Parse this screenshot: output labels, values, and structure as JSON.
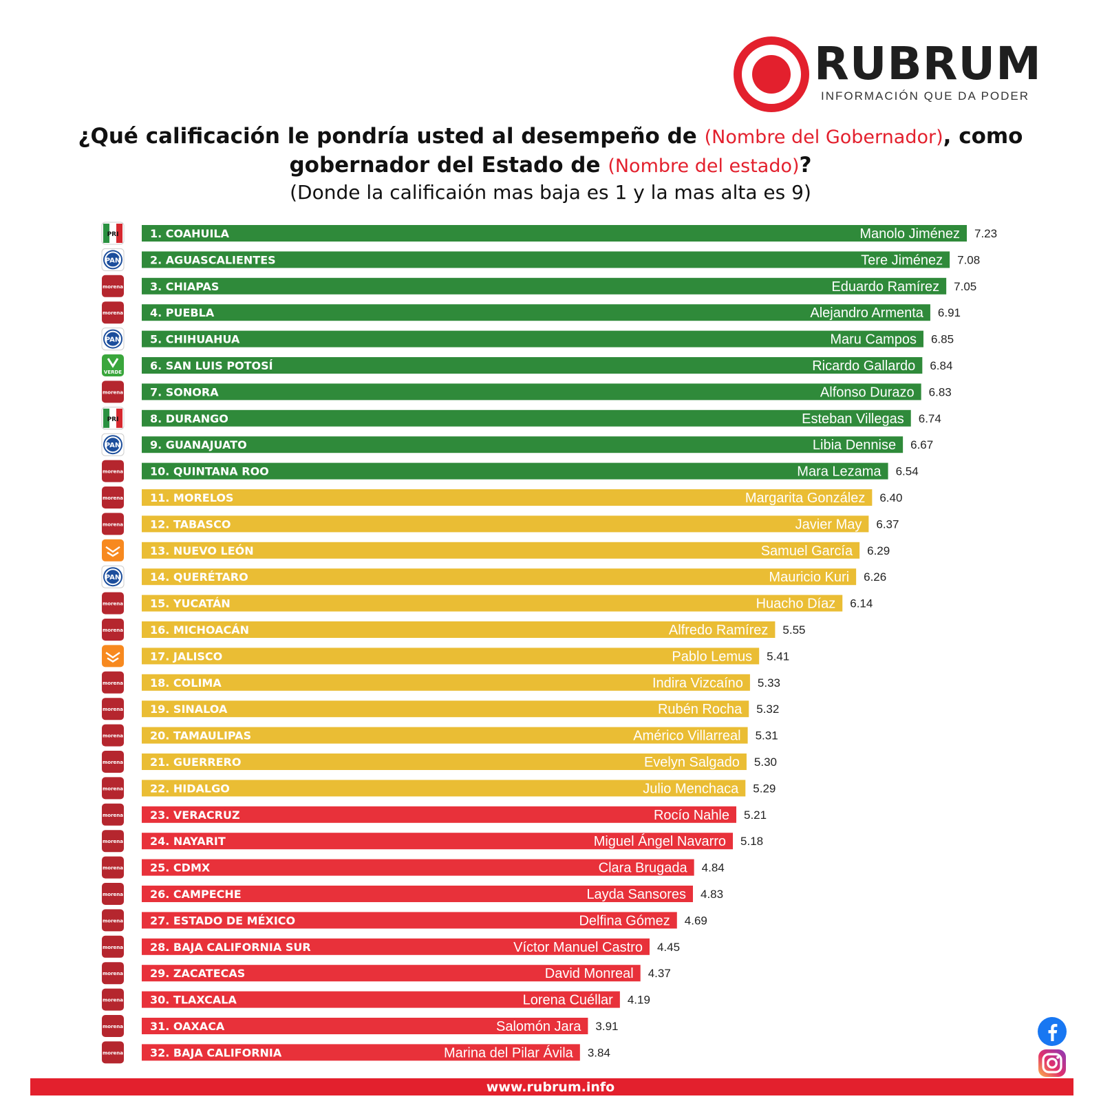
{
  "brand": {
    "name": "RUBRUM",
    "tagline": "INFORMACIÓN QUE DA PODER",
    "color": "#e3202d"
  },
  "header": {
    "title_part1": "¿Qué calificación le pondría usted al desempeño de ",
    "title_red1": "(Nombre del Gobernador)",
    "title_part2": ", como gobernador del Estado de ",
    "title_red2": "(Nombre del estado)",
    "title_part3": "?",
    "subtitle": "(Donde la calificaión mas baja es 1 y la mas alta es 9)"
  },
  "footer": {
    "url": "www.rubrum.info"
  },
  "social": [
    "facebook-icon",
    "instagram-icon"
  ],
  "colors": {
    "green": "#2f8a3a",
    "yellow": "#eabd34",
    "red": "#e8313a",
    "morena": "#b5262e",
    "pan": "#1c4e9c",
    "pri": "#2a9141",
    "mc": "#f7891f",
    "verde": "#3aa63c"
  },
  "chart_data": {
    "type": "bar",
    "orientation": "horizontal",
    "xlim": [
      0,
      7.5
    ],
    "categories": [
      "1. COAHUILA",
      "2. AGUASCALIENTES",
      "3. CHIAPAS",
      "4. PUEBLA",
      "5. CHIHUAHUA",
      "6. SAN LUIS POTOSÍ",
      "7. SONORA",
      "8. DURANGO",
      "9. GUANAJUATO",
      "10. QUINTANA ROO",
      "11. MORELOS",
      "12. TABASCO",
      "13. NUEVO LEÓN",
      "14. QUERÉTARO",
      "15. YUCATÁN",
      "16. MICHOACÁN",
      "17. JALISCO",
      "18. COLIMA",
      "19. SINALOA",
      "20. TAMAULIPAS",
      "21. GUERRERO",
      "22. HIDALGO",
      "23. VERACRUZ",
      "24. NAYARIT",
      "25. CDMX",
      "26. CAMPECHE",
      "27. ESTADO DE MÉXICO",
      "28. BAJA CALIFORNIA SUR",
      "29. ZACATECAS",
      "30. TLAXCALA",
      "31. OAXACA",
      "32. BAJA CALIFORNIA"
    ],
    "governors": [
      "Manolo Jiménez",
      "Tere Jiménez",
      "Eduardo Ramírez",
      "Alejandro Armenta",
      "Maru Campos",
      "Ricardo Gallardo",
      "Alfonso Durazo",
      "Esteban Villegas",
      "Libia Dennise",
      "Mara Lezama",
      "Margarita González",
      "Javier May",
      "Samuel García",
      "Mauricio Kuri",
      "Huacho Díaz",
      "Alfredo Ramírez",
      "Pablo Lemus",
      "Indira Vizcaíno",
      "Rubén Rocha",
      "Américo Villarreal",
      "Evelyn Salgado",
      "Julio Menchaca",
      "Rocío Nahle",
      "Miguel Ángel Navarro",
      "Clara Brugada",
      "Layda Sansores",
      "Delfina Gómez",
      "Víctor Manuel Castro",
      "David Monreal",
      "Lorena Cuéllar",
      "Salomón Jara",
      "Marina del Pilar Ávila"
    ],
    "values": [
      7.23,
      7.08,
      7.05,
      6.91,
      6.85,
      6.84,
      6.83,
      6.74,
      6.67,
      6.54,
      6.4,
      6.37,
      6.29,
      6.26,
      6.14,
      5.55,
      5.41,
      5.33,
      5.32,
      5.31,
      5.3,
      5.29,
      5.21,
      5.18,
      4.84,
      4.83,
      4.69,
      4.45,
      4.37,
      4.19,
      3.91,
      3.84
    ],
    "value_labels": [
      "7.23",
      "7.08",
      "7.05",
      "6.91",
      "6.85",
      "6.84",
      "6.83",
      "6.74",
      "6.67",
      "6.54",
      "6.40",
      "6.37",
      "6.29",
      "6.26",
      "6.14",
      "5.55",
      "5.41",
      "5.33",
      "5.32",
      "5.31",
      "5.30",
      "5.29",
      "5.21",
      "5.18",
      "4.84",
      "4.83",
      "4.69",
      "4.45",
      "4.37",
      "4.19",
      "3.91",
      "3.84"
    ],
    "bar_colors": [
      "green",
      "green",
      "green",
      "green",
      "green",
      "green",
      "green",
      "green",
      "green",
      "green",
      "yellow",
      "yellow",
      "yellow",
      "yellow",
      "yellow",
      "yellow",
      "yellow",
      "yellow",
      "yellow",
      "yellow",
      "yellow",
      "yellow",
      "red",
      "red",
      "red",
      "red",
      "red",
      "red",
      "red",
      "red",
      "red",
      "red"
    ],
    "party_labels": [
      "PRI",
      "PAN",
      "morena",
      "morena",
      "PAN",
      "VERDE",
      "morena",
      "PRI",
      "PAN",
      "morena",
      "morena",
      "morena",
      "MC",
      "PAN",
      "morena",
      "morena",
      "MC",
      "morena",
      "morena",
      "morena",
      "morena",
      "morena",
      "morena",
      "morena",
      "morena",
      "morena",
      "morena",
      "morena",
      "morena",
      "morena",
      "morena",
      "morena"
    ],
    "grid": false,
    "legend": "none"
  }
}
